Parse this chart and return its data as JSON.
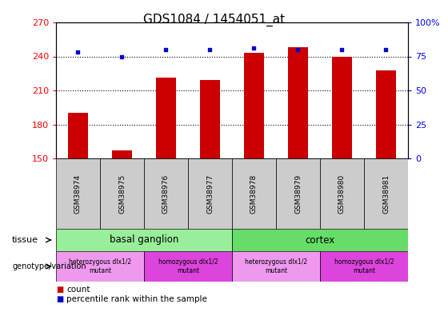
{
  "title": "GDS1084 / 1454051_at",
  "samples": [
    "GSM38974",
    "GSM38975",
    "GSM38976",
    "GSM38977",
    "GSM38978",
    "GSM38979",
    "GSM38980",
    "GSM38981"
  ],
  "counts": [
    190,
    157,
    221,
    219,
    243,
    248,
    240,
    228
  ],
  "percentiles": [
    78,
    75,
    80,
    80,
    81,
    80,
    80,
    80
  ],
  "ylim_left": [
    150,
    270
  ],
  "ylim_right": [
    0,
    100
  ],
  "yticks_left": [
    150,
    180,
    210,
    240,
    270
  ],
  "yticks_right": [
    0,
    25,
    50,
    75,
    100
  ],
  "bar_color": "#cc0000",
  "dot_color": "#0000cc",
  "tissue_groups": [
    {
      "label": "basal ganglion",
      "start": 0,
      "end": 4,
      "color": "#99ee99"
    },
    {
      "label": "cortex",
      "start": 4,
      "end": 8,
      "color": "#66dd66"
    }
  ],
  "genotype_groups": [
    {
      "label": "heterozygous dlx1/2\nmutant",
      "start": 0,
      "end": 2,
      "color": "#ee99ee"
    },
    {
      "label": "homozygous dlx1/2\nmutant",
      "start": 2,
      "end": 4,
      "color": "#dd44dd"
    },
    {
      "label": "heterozygous dlx1/2\nmutant",
      "start": 4,
      "end": 6,
      "color": "#ee99ee"
    },
    {
      "label": "homozygous dlx1/2\nmutant",
      "start": 6,
      "end": 8,
      "color": "#dd44dd"
    }
  ],
  "tissue_label": "tissue",
  "genotype_label": "genotype/variation",
  "legend_count_label": "count",
  "legend_percentile_label": "percentile rank within the sample",
  "background_color": "#ffffff",
  "title_fontsize": 11,
  "axis_fontsize": 8,
  "sample_fontsize": 6.5,
  "row_label_fontsize": 8,
  "geno_fontsize": 5.5,
  "legend_fontsize": 7.5
}
